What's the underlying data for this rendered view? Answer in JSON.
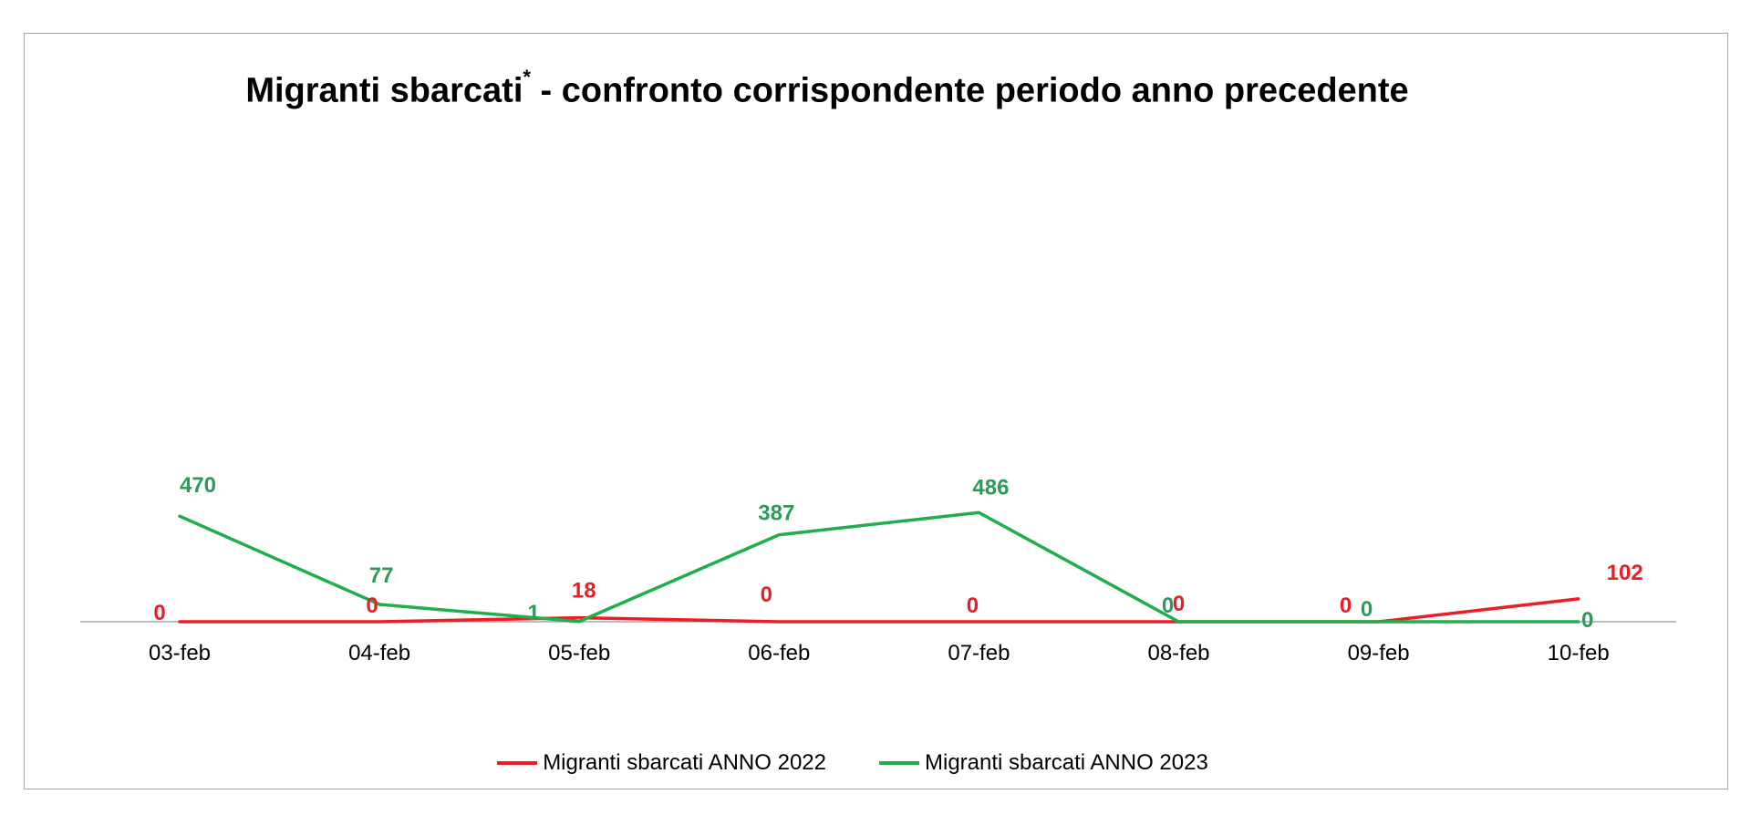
{
  "chart_data": {
    "type": "line",
    "title": "Migranti sbarcati",
    "title_mark": "*",
    "title_rest": " - confronto corrispondente periodo anno precedente",
    "categories": [
      "03-feb",
      "04-feb",
      "05-feb",
      "06-feb",
      "07-feb",
      "08-feb",
      "09-feb",
      "10-feb"
    ],
    "series": [
      {
        "name": "Migranti sbarcati ANNO 2022",
        "color": "#ee1c25",
        "values": [
          0,
          0,
          18,
          0,
          0,
          0,
          0,
          102
        ]
      },
      {
        "name": "Migranti sbarcati ANNO 2023",
        "color": "#1fae4b",
        "label_color": "#2e9a5a",
        "values": [
          470,
          77,
          1,
          387,
          486,
          0,
          0,
          0
        ]
      }
    ],
    "ylim": [
      0,
      2200
    ],
    "grid": false,
    "legend_position": "bottom",
    "xlabel": "",
    "ylabel": ""
  }
}
